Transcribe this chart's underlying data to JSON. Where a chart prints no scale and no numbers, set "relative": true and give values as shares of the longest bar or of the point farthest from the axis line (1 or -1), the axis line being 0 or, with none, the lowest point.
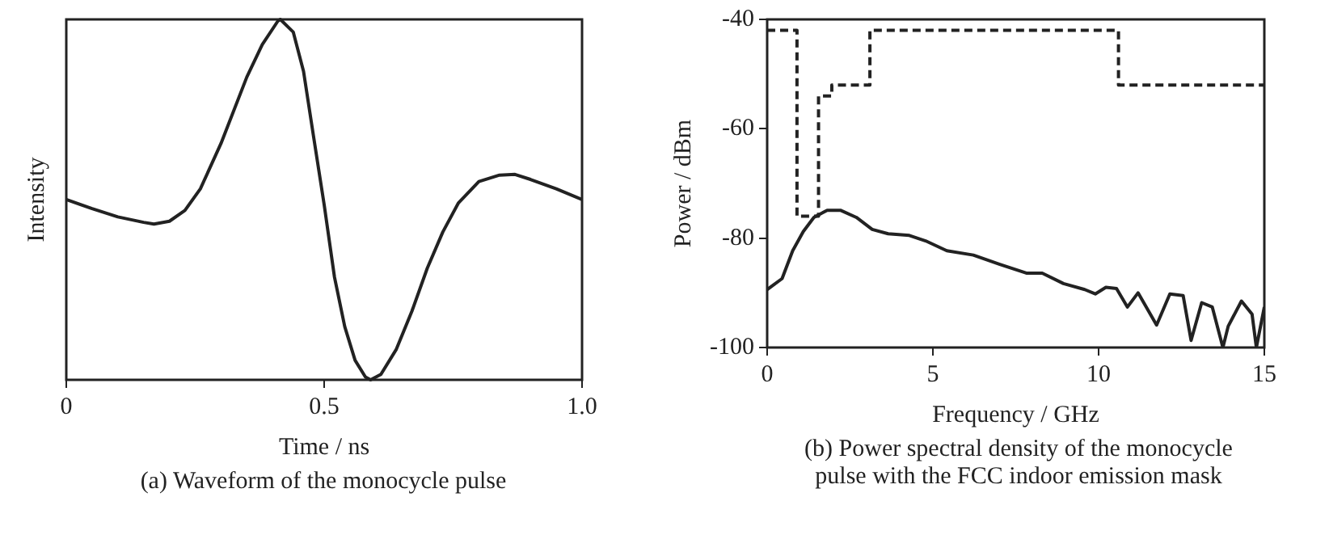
{
  "chart_data": [
    {
      "type": "line",
      "relative": true,
      "xlabel": "Time / ns",
      "ylabel": "Intensity",
      "xlim": [
        0,
        1
      ],
      "xticks": [
        0,
        0.5,
        {
          "value": 1,
          "label": "1.0"
        }
      ],
      "tick_labels": "x",
      "grid": false,
      "legend": false,
      "marker": "none",
      "annotations": [
        "(a)  Waveform of the monocycle pulse"
      ],
      "series": [
        {
          "color": "#222222",
          "x": [
            0,
            0.05,
            0.1,
            0.15,
            0.17,
            0.2,
            0.23,
            0.26,
            0.3,
            0.35,
            0.38,
            0.41,
            0.415,
            0.44,
            0.46,
            0.48,
            0.5,
            0.52,
            0.54,
            0.56,
            0.58,
            0.59,
            0.61,
            0.64,
            0.67,
            0.7,
            0.73,
            0.76,
            0.8,
            0.84,
            0.87,
            0.9,
            0.95,
            1.0
          ],
          "values": [
            0.5,
            0.475,
            0.452,
            0.437,
            0.432,
            0.44,
            0.47,
            0.53,
            0.656,
            0.84,
            0.93,
            0.995,
            1.0,
            0.965,
            0.856,
            0.67,
            0.486,
            0.285,
            0.147,
            0.054,
            0.008,
            0,
            0.015,
            0.085,
            0.19,
            0.31,
            0.41,
            0.49,
            0.55,
            0.568,
            0.57,
            0.556,
            0.53,
            0.5
          ]
        }
      ]
    },
    {
      "type": "line",
      "xlabel": "Frequency / GHz",
      "ylabel": "Power / dBm",
      "xlim": [
        0,
        15
      ],
      "xticks": [
        0,
        5,
        10,
        15
      ],
      "ylim": [
        -100,
        -40
      ],
      "yticks": [
        -100,
        -80,
        -60,
        -40
      ],
      "grid": false,
      "legend": false,
      "marker": "none",
      "annotations": [
        "(b)  Power spectral density of the monocycle pulse with the FCC indoor emission mask"
      ],
      "series": [
        {
          "color": "#222222",
          "x": [
            0,
            0.45,
            0.77,
            1.09,
            1.41,
            1.81,
            2.21,
            2.69,
            3.17,
            3.65,
            4.29,
            4.78,
            5.42,
            6.22,
            7.02,
            7.82,
            8.3,
            8.94,
            9.58,
            9.9,
            10.22,
            10.54,
            10.87,
            11.19,
            11.75,
            12.15,
            12.55,
            12.79,
            13.11,
            13.43,
            13.75,
            13.91,
            14.31,
            14.63,
            14.76,
            15
          ],
          "values": [
            -89.4,
            -87.4,
            -82.3,
            -78.8,
            -76.2,
            -74.9,
            -74.9,
            -76.2,
            -78.4,
            -79.2,
            -79.5,
            -80.5,
            -82.3,
            -83.1,
            -84.8,
            -86.4,
            -86.4,
            -88.3,
            -89.4,
            -90.2,
            -89,
            -89.2,
            -92.6,
            -90,
            -95.9,
            -90.2,
            -90.5,
            -98.7,
            -91.8,
            -92.6,
            -100,
            -96.1,
            -91.5,
            -93.9,
            -100,
            -92.6
          ]
        },
        {
          "type": "step",
          "color": "#222222",
          "line_style": "dashed",
          "x": [
            0,
            0.9,
            1.55,
            1.95,
            3.1,
            10.6,
            15
          ],
          "values": [
            -42,
            -76,
            -54,
            -52,
            -42,
            -52,
            -52
          ]
        }
      ]
    }
  ]
}
